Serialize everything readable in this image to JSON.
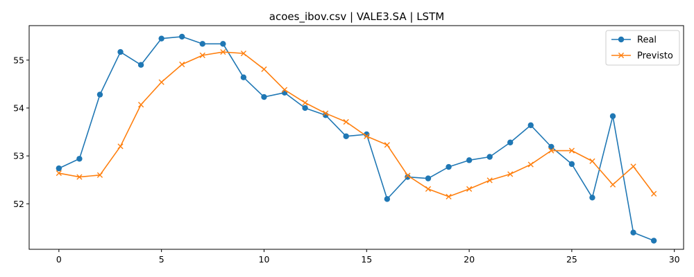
{
  "chart_data": {
    "type": "line",
    "title": "acoes_ibov.csv | VALE3.SA | LSTM",
    "xlabel": "",
    "ylabel": "",
    "x": [
      0,
      1,
      2,
      3,
      4,
      5,
      6,
      7,
      8,
      9,
      10,
      11,
      12,
      13,
      14,
      15,
      16,
      17,
      18,
      19,
      20,
      21,
      22,
      23,
      24,
      25,
      26,
      27,
      28,
      29
    ],
    "xlim": [
      -1.45,
      30.45
    ],
    "ylim": [
      51.05,
      55.72
    ],
    "xticks": [
      0,
      5,
      10,
      15,
      20,
      25,
      30
    ],
    "yticks": [
      52,
      53,
      54,
      55
    ],
    "grid": false,
    "legend_position": "top-right",
    "series": [
      {
        "name": "Real",
        "color": "#1f77b4",
        "marker": "circle",
        "values": [
          52.74,
          52.94,
          54.28,
          55.17,
          54.9,
          55.45,
          55.49,
          55.34,
          55.34,
          54.64,
          54.23,
          54.32,
          54.0,
          53.85,
          53.41,
          53.45,
          52.1,
          52.56,
          52.53,
          52.77,
          52.91,
          52.98,
          53.28,
          53.64,
          53.19,
          52.83,
          52.13,
          53.83,
          51.4,
          51.23
        ]
      },
      {
        "name": "Previsto",
        "color": "#ff7f0e",
        "marker": "x",
        "values": [
          52.64,
          52.56,
          52.6,
          53.2,
          54.07,
          54.54,
          54.91,
          55.1,
          55.17,
          55.14,
          54.81,
          54.38,
          54.11,
          53.89,
          53.71,
          53.41,
          53.23,
          52.59,
          52.31,
          52.15,
          52.31,
          52.49,
          52.62,
          52.82,
          53.11,
          53.11,
          52.89,
          52.4,
          52.78,
          52.21
        ]
      }
    ]
  }
}
